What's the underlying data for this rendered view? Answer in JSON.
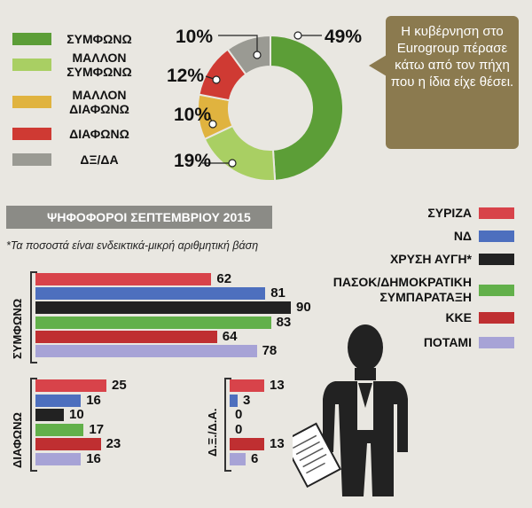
{
  "donut": {
    "legend": [
      {
        "label": "ΣΥΜΦΩΝΩ",
        "color": "#5c9e37"
      },
      {
        "label": "ΜΑΛΛΟΝ ΣΥΜΦΩΝΩ",
        "color": "#a9cf63"
      },
      {
        "label": "ΜΑΛΛΟΝ ΔΙΑΦΩΝΩ",
        "color": "#e0b33f"
      },
      {
        "label": "ΔΙΑΦΩΝΩ",
        "color": "#cf3a33"
      },
      {
        "label": "ΔΞ/ΔΑ",
        "color": "#9a9a93"
      }
    ],
    "percent_labels": [
      "49%",
      "19%",
      "10%",
      "12%",
      "10%"
    ]
  },
  "callout": {
    "text": "Η κυβέρνηση στο Eurogroup πέρασε κάτω από τον πήχη που η ίδια είχε θέσει."
  },
  "section": {
    "title": "ΨΗΦΟΦΟΡΟΙ ΣΕΠΤΕΜΒΡΙΟΥ 2015",
    "note": "*Τα ποσοστά είναι ενδεικτικά-μικρή αριθμητική βάση"
  },
  "parties": [
    {
      "label": "ΣΥΡΙΖΑ",
      "color": "#d8434a"
    },
    {
      "label": "ΝΔ",
      "color": "#4d6fbe"
    },
    {
      "label": "ΧΡΥΣΗ ΑΥΓΗ*",
      "color": "#222222"
    },
    {
      "label": "ΠΑΣΟΚ/ΔΗΜΟΚΡΑΤΙΚΗ ΣΥΜΠΑΡΑΤΑΞΗ",
      "color": "#62b04a"
    },
    {
      "label": "ΚΚΕ",
      "color": "#bf2f31"
    },
    {
      "label": "ΠΟΤΑΜΙ",
      "color": "#a7a3d6"
    }
  ],
  "group_labels": {
    "agree": "ΣΥΜΦΩΝΩ",
    "disagree": "ΔΙΑΦΩΝΩ",
    "dkna": "Δ.Ξ./Δ.Α."
  },
  "chart_data": [
    {
      "type": "pie",
      "categories": [
        "ΣΥΜΦΩΝΩ",
        "ΜΑΛΛΟΝ ΣΥΜΦΩΝΩ",
        "ΜΑΛΛΟΝ ΔΙΑΦΩΝΩ",
        "ΔΙΑΦΩΝΩ",
        "ΔΞ/ΔΑ"
      ],
      "values": [
        49,
        19,
        10,
        12,
        10
      ],
      "legend": "left"
    },
    {
      "type": "bar",
      "title": "ΨΗΦΟΦΟΡΟΙ ΣΕΠΤΕΜΒΡΙΟΥ 2015",
      "categories": [
        "ΣΥΡΙΖΑ",
        "ΝΔ",
        "ΧΡΥΣΗ ΑΥΓΗ*",
        "ΠΑΣΟΚ/ΔΗΜΟΚΡΑΤΙΚΗ ΣΥΜΠΑΡΑΤΑΞΗ",
        "ΚΚΕ",
        "ΠΟΤΑΜΙ"
      ],
      "series": [
        {
          "name": "ΣΥΜΦΩΝΩ",
          "values": [
            62,
            81,
            90,
            83,
            64,
            78
          ]
        },
        {
          "name": "ΔΙΑΦΩΝΩ",
          "values": [
            25,
            16,
            10,
            17,
            23,
            16
          ]
        },
        {
          "name": "Δ.Ξ./Δ.Α.",
          "values": [
            13,
            3,
            0,
            0,
            13,
            6
          ]
        }
      ],
      "ylim": [
        0,
        100
      ],
      "legend": "right"
    }
  ]
}
